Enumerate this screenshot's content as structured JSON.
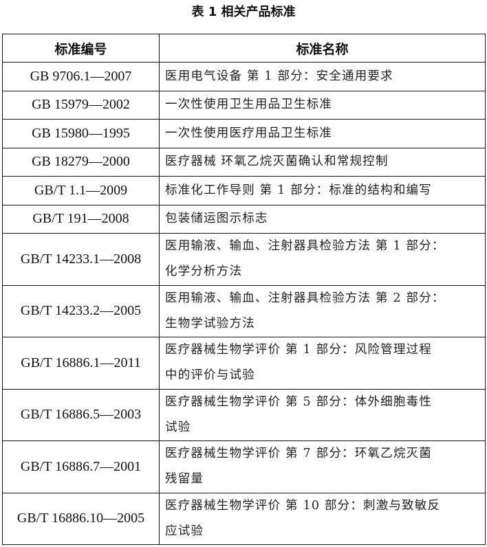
{
  "title": "表 1  相关产品标准",
  "table": {
    "headers": [
      "标准编号",
      "标准名称"
    ],
    "rows": [
      {
        "code": "GB 9706.1—2007",
        "name_lines": [
          "医用电气设备 第 1 部分：安全通用要求"
        ]
      },
      {
        "code": "GB 15979—2002",
        "name_lines": [
          "一次性使用卫生用品卫生标准"
        ]
      },
      {
        "code": "GB 15980—1995",
        "name_lines": [
          "一次性使用医疗用品卫生标准"
        ]
      },
      {
        "code": "GB 18279—2000",
        "name_lines": [
          "医疗器械 环氧乙烷灭菌确认和常规控制"
        ]
      },
      {
        "code": "GB/T 1.1—2009",
        "name_lines": [
          "标准化工作导则 第 1 部分：标准的结构和编写"
        ]
      },
      {
        "code": "GB/T 191—2008",
        "name_lines": [
          "包装储运图示标志"
        ]
      },
      {
        "code": "GB/T 14233.1—2008",
        "name_lines": [
          "医用输液、输血、注射器具检验方法 第 1 部分：",
          "化学分析方法"
        ]
      },
      {
        "code": "GB/T 14233.2—2005",
        "name_lines": [
          "医用输液、输血、注射器具检验方法 第 2 部分：",
          "生物学试验方法"
        ]
      },
      {
        "code": "GB/T 16886.1—2011",
        "name_lines": [
          "医疗器械生物学评价 第 1 部分：风险管理过程",
          "中的评价与试验"
        ]
      },
      {
        "code": "GB/T 16886.5—2003",
        "name_lines": [
          "医疗器械生物学评价 第 5 部分：体外细胞毒性",
          "试验"
        ]
      },
      {
        "code": "GB/T 16886.7—2001",
        "name_lines": [
          "医疗器械生物学评价 第 7 部分：环氧乙烷灭菌",
          "残留量"
        ]
      },
      {
        "code": "GB/T 16886.10—2005",
        "name_lines": [
          "医疗器械生物学评价 第 10 部分：刺激与致敏反",
          "应试验"
        ]
      }
    ]
  }
}
